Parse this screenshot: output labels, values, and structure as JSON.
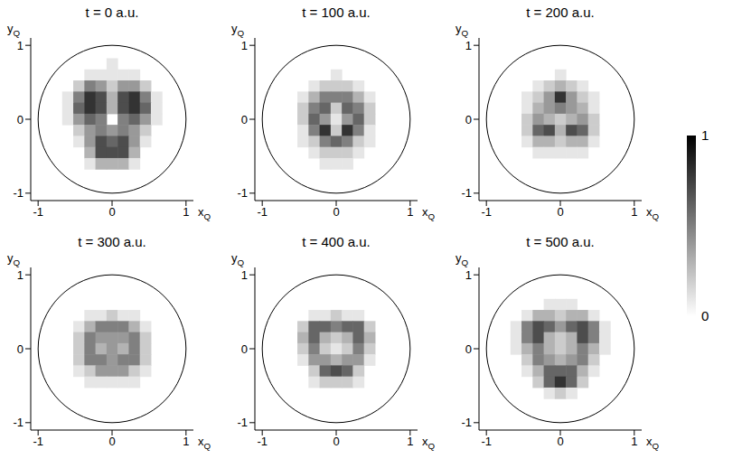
{
  "chart_data": [
    {
      "type": "heatmap",
      "title": "t = 0 a.u.",
      "x_label": "xQ",
      "y_label": "yQ",
      "xlim": [
        -1.1,
        1.1
      ],
      "ylim": [
        -1.1,
        1.1
      ],
      "xticks": [
        -1,
        0,
        1
      ],
      "yticks": [
        -1,
        0,
        1
      ],
      "boundary": {
        "center": [
          0,
          0
        ],
        "radius": 1
      },
      "x": [
        -0.75,
        -0.6,
        -0.45,
        -0.3,
        -0.15,
        0,
        0.15,
        0.3,
        0.45,
        0.6,
        0.75
      ],
      "y": [
        0.75,
        0.6,
        0.45,
        0.3,
        0.15,
        0,
        -0.15,
        -0.3,
        -0.45,
        -0.6,
        -0.75
      ],
      "z": [
        [
          0,
          0,
          0,
          0,
          0,
          0.1,
          0,
          0,
          0,
          0,
          0
        ],
        [
          0,
          0,
          0,
          0.1,
          0.1,
          0.1,
          0.1,
          0.1,
          0,
          0,
          0
        ],
        [
          0,
          0,
          0.2,
          0.5,
          0.4,
          0.2,
          0.4,
          0.4,
          0.2,
          0,
          0
        ],
        [
          0,
          0.1,
          0.5,
          0.8,
          0.7,
          0.3,
          0.7,
          0.8,
          0.5,
          0.1,
          0
        ],
        [
          0,
          0.1,
          0.6,
          0.8,
          0.7,
          0.3,
          0.7,
          0.8,
          0.6,
          0.1,
          0
        ],
        [
          0,
          0.1,
          0.4,
          0.6,
          0.5,
          0,
          0.5,
          0.6,
          0.4,
          0.1,
          0
        ],
        [
          0,
          0,
          0.2,
          0.4,
          0.5,
          0.4,
          0.5,
          0.4,
          0.2,
          0,
          0
        ],
        [
          0,
          0,
          0.1,
          0.4,
          0.7,
          0.6,
          0.7,
          0.4,
          0.1,
          0,
          0
        ],
        [
          0,
          0,
          0,
          0.3,
          0.7,
          0.7,
          0.7,
          0.3,
          0,
          0,
          0
        ],
        [
          0,
          0,
          0,
          0.1,
          0.3,
          0.3,
          0.3,
          0.1,
          0,
          0,
          0
        ],
        [
          0,
          0,
          0,
          0,
          0,
          0,
          0,
          0,
          0,
          0,
          0
        ]
      ]
    },
    {
      "type": "heatmap",
      "title": "t = 100 a.u.",
      "x_label": "xQ",
      "y_label": "yQ",
      "xlim": [
        -1.1,
        1.1
      ],
      "ylim": [
        -1.1,
        1.1
      ],
      "xticks": [
        -1,
        0,
        1
      ],
      "yticks": [
        -1,
        0,
        1
      ],
      "boundary": {
        "center": [
          0,
          0
        ],
        "radius": 1
      },
      "x": [
        -0.75,
        -0.6,
        -0.45,
        -0.3,
        -0.15,
        0,
        0.15,
        0.3,
        0.45,
        0.6,
        0.75
      ],
      "y": [
        0.75,
        0.6,
        0.45,
        0.3,
        0.15,
        0,
        -0.15,
        -0.3,
        -0.45,
        -0.6,
        -0.75
      ],
      "z": [
        [
          0,
          0,
          0,
          0,
          0,
          0,
          0,
          0,
          0,
          0,
          0
        ],
        [
          0,
          0,
          0,
          0,
          0,
          0.1,
          0,
          0,
          0,
          0,
          0
        ],
        [
          0,
          0,
          0,
          0.1,
          0.2,
          0.2,
          0.2,
          0.1,
          0,
          0,
          0
        ],
        [
          0,
          0,
          0.1,
          0.3,
          0.5,
          0.5,
          0.5,
          0.3,
          0.1,
          0,
          0
        ],
        [
          0,
          0,
          0.2,
          0.5,
          0.6,
          0.2,
          0.6,
          0.5,
          0.2,
          0,
          0
        ],
        [
          0,
          0,
          0.2,
          0.6,
          0.4,
          0.1,
          0.4,
          0.6,
          0.2,
          0,
          0
        ],
        [
          0,
          0,
          0.1,
          0.5,
          0.8,
          0.2,
          0.8,
          0.5,
          0.1,
          0,
          0
        ],
        [
          0,
          0,
          0.1,
          0.2,
          0.5,
          0.6,
          0.5,
          0.2,
          0.1,
          0,
          0
        ],
        [
          0,
          0,
          0,
          0.1,
          0.2,
          0.2,
          0.2,
          0.1,
          0,
          0,
          0
        ],
        [
          0,
          0,
          0,
          0,
          0.1,
          0.1,
          0.1,
          0,
          0,
          0,
          0
        ],
        [
          0,
          0,
          0,
          0,
          0,
          0,
          0,
          0,
          0,
          0,
          0
        ]
      ]
    },
    {
      "type": "heatmap",
      "title": "t = 200 a.u.",
      "x_label": "xQ",
      "y_label": "yQ",
      "xlim": [
        -1.1,
        1.1
      ],
      "ylim": [
        -1.1,
        1.1
      ],
      "xticks": [
        -1,
        0,
        1
      ],
      "yticks": [
        -1,
        0,
        1
      ],
      "boundary": {
        "center": [
          0,
          0
        ],
        "radius": 1
      },
      "x": [
        -0.75,
        -0.6,
        -0.45,
        -0.3,
        -0.15,
        0,
        0.15,
        0.3,
        0.45,
        0.6,
        0.75
      ],
      "y": [
        0.75,
        0.6,
        0.45,
        0.3,
        0.15,
        0,
        -0.15,
        -0.3,
        -0.45,
        -0.6,
        -0.75
      ],
      "z": [
        [
          0,
          0,
          0,
          0,
          0,
          0,
          0,
          0,
          0,
          0,
          0
        ],
        [
          0,
          0,
          0,
          0,
          0,
          0.1,
          0,
          0,
          0,
          0,
          0
        ],
        [
          0,
          0,
          0,
          0.1,
          0.2,
          0.3,
          0.2,
          0.1,
          0,
          0,
          0
        ],
        [
          0,
          0,
          0.1,
          0.2,
          0.4,
          0.8,
          0.4,
          0.2,
          0.1,
          0,
          0
        ],
        [
          0,
          0,
          0.1,
          0.3,
          0.4,
          0.5,
          0.4,
          0.3,
          0.1,
          0,
          0
        ],
        [
          0,
          0,
          0.2,
          0.4,
          0.3,
          0.2,
          0.3,
          0.4,
          0.2,
          0,
          0
        ],
        [
          0,
          0,
          0.2,
          0.6,
          0.7,
          0.3,
          0.7,
          0.6,
          0.2,
          0,
          0
        ],
        [
          0,
          0,
          0.1,
          0.3,
          0.3,
          0.2,
          0.3,
          0.3,
          0.1,
          0,
          0
        ],
        [
          0,
          0,
          0,
          0.1,
          0.1,
          0.1,
          0.1,
          0.1,
          0,
          0,
          0
        ],
        [
          0,
          0,
          0,
          0,
          0,
          0,
          0,
          0,
          0,
          0,
          0
        ],
        [
          0,
          0,
          0,
          0,
          0,
          0,
          0,
          0,
          0,
          0,
          0
        ]
      ]
    },
    {
      "type": "heatmap",
      "title": "t = 300 a.u.",
      "x_label": "xQ",
      "y_label": "yQ",
      "xlim": [
        -1.1,
        1.1
      ],
      "ylim": [
        -1.1,
        1.1
      ],
      "xticks": [
        -1,
        0,
        1
      ],
      "yticks": [
        -1,
        0,
        1
      ],
      "boundary": {
        "center": [
          0,
          0
        ],
        "radius": 1
      },
      "x": [
        -0.75,
        -0.6,
        -0.45,
        -0.3,
        -0.15,
        0,
        0.15,
        0.3,
        0.45,
        0.6,
        0.75
      ],
      "y": [
        0.75,
        0.6,
        0.45,
        0.3,
        0.15,
        0,
        -0.15,
        -0.3,
        -0.45,
        -0.6,
        -0.75
      ],
      "z": [
        [
          0,
          0,
          0,
          0,
          0,
          0,
          0,
          0,
          0,
          0,
          0
        ],
        [
          0,
          0,
          0,
          0,
          0,
          0,
          0,
          0,
          0,
          0,
          0
        ],
        [
          0,
          0,
          0,
          0.1,
          0.1,
          0.2,
          0.1,
          0.1,
          0,
          0,
          0
        ],
        [
          0,
          0,
          0.1,
          0.3,
          0.5,
          0.5,
          0.5,
          0.3,
          0.1,
          0,
          0
        ],
        [
          0,
          0,
          0.2,
          0.5,
          0.4,
          0.4,
          0.4,
          0.5,
          0.2,
          0,
          0
        ],
        [
          0,
          0,
          0.2,
          0.5,
          0.3,
          0.4,
          0.3,
          0.5,
          0.2,
          0,
          0
        ],
        [
          0,
          0,
          0.2,
          0.5,
          0.5,
          0.4,
          0.5,
          0.5,
          0.2,
          0,
          0
        ],
        [
          0,
          0,
          0.1,
          0.2,
          0.4,
          0.4,
          0.4,
          0.2,
          0.1,
          0,
          0
        ],
        [
          0,
          0,
          0,
          0.1,
          0.1,
          0.1,
          0.1,
          0.1,
          0,
          0,
          0
        ],
        [
          0,
          0,
          0,
          0,
          0,
          0,
          0,
          0,
          0,
          0,
          0
        ],
        [
          0,
          0,
          0,
          0,
          0,
          0,
          0,
          0,
          0,
          0,
          0
        ]
      ]
    },
    {
      "type": "heatmap",
      "title": "t = 400 a.u.",
      "x_label": "xQ",
      "y_label": "yQ",
      "xlim": [
        -1.1,
        1.1
      ],
      "ylim": [
        -1.1,
        1.1
      ],
      "xticks": [
        -1,
        0,
        1
      ],
      "yticks": [
        -1,
        0,
        1
      ],
      "boundary": {
        "center": [
          0,
          0
        ],
        "radius": 1
      },
      "x": [
        -0.75,
        -0.6,
        -0.45,
        -0.3,
        -0.15,
        0,
        0.15,
        0.3,
        0.45,
        0.6,
        0.75
      ],
      "y": [
        0.75,
        0.6,
        0.45,
        0.3,
        0.15,
        0,
        -0.15,
        -0.3,
        -0.45,
        -0.6,
        -0.75
      ],
      "z": [
        [
          0,
          0,
          0,
          0,
          0,
          0,
          0,
          0,
          0,
          0,
          0
        ],
        [
          0,
          0,
          0,
          0,
          0,
          0,
          0,
          0,
          0,
          0,
          0
        ],
        [
          0,
          0,
          0,
          0.1,
          0.1,
          0.2,
          0.1,
          0.1,
          0,
          0,
          0
        ],
        [
          0,
          0,
          0.2,
          0.6,
          0.6,
          0.5,
          0.6,
          0.6,
          0.2,
          0,
          0
        ],
        [
          0,
          0,
          0.3,
          0.6,
          0.3,
          0.2,
          0.3,
          0.6,
          0.3,
          0,
          0
        ],
        [
          0,
          0,
          0.2,
          0.5,
          0.2,
          0.1,
          0.2,
          0.5,
          0.2,
          0,
          0
        ],
        [
          0,
          0,
          0.1,
          0.4,
          0.4,
          0.3,
          0.4,
          0.4,
          0.1,
          0,
          0
        ],
        [
          0,
          0,
          0,
          0.2,
          0.6,
          0.7,
          0.6,
          0.2,
          0,
          0,
          0
        ],
        [
          0,
          0,
          0,
          0.1,
          0.2,
          0.2,
          0.2,
          0.1,
          0,
          0,
          0
        ],
        [
          0,
          0,
          0,
          0,
          0,
          0,
          0,
          0,
          0,
          0,
          0
        ],
        [
          0,
          0,
          0,
          0,
          0,
          0,
          0,
          0,
          0,
          0,
          0
        ]
      ]
    },
    {
      "type": "heatmap",
      "title": "t = 500 a.u.",
      "x_label": "xQ",
      "y_label": "yQ",
      "xlim": [
        -1.1,
        1.1
      ],
      "ylim": [
        -1.1,
        1.1
      ],
      "xticks": [
        -1,
        0,
        1
      ],
      "yticks": [
        -1,
        0,
        1
      ],
      "boundary": {
        "center": [
          0,
          0
        ],
        "radius": 1
      },
      "x": [
        -0.75,
        -0.6,
        -0.45,
        -0.3,
        -0.15,
        0,
        0.15,
        0.3,
        0.45,
        0.6,
        0.75
      ],
      "y": [
        0.75,
        0.6,
        0.45,
        0.3,
        0.15,
        0,
        -0.15,
        -0.3,
        -0.45,
        -0.6,
        -0.75
      ],
      "z": [
        [
          0,
          0,
          0,
          0,
          0,
          0,
          0,
          0,
          0,
          0,
          0
        ],
        [
          0,
          0,
          0,
          0,
          0.1,
          0.1,
          0.1,
          0,
          0,
          0,
          0
        ],
        [
          0,
          0,
          0.1,
          0.3,
          0.3,
          0.2,
          0.3,
          0.3,
          0.1,
          0,
          0
        ],
        [
          0,
          0.1,
          0.5,
          0.7,
          0.6,
          0.4,
          0.6,
          0.7,
          0.5,
          0.1,
          0
        ],
        [
          0,
          0.1,
          0.5,
          0.7,
          0.3,
          0.2,
          0.3,
          0.7,
          0.5,
          0.1,
          0
        ],
        [
          0,
          0.1,
          0.3,
          0.5,
          0.3,
          0.2,
          0.3,
          0.5,
          0.3,
          0.1,
          0
        ],
        [
          0,
          0,
          0.2,
          0.5,
          0.4,
          0.3,
          0.4,
          0.5,
          0.2,
          0,
          0
        ],
        [
          0,
          0,
          0.1,
          0.3,
          0.6,
          0.6,
          0.6,
          0.3,
          0.1,
          0,
          0
        ],
        [
          0,
          0,
          0,
          0.2,
          0.6,
          0.8,
          0.6,
          0.2,
          0,
          0,
          0
        ],
        [
          0,
          0,
          0,
          0,
          0.1,
          0.2,
          0.1,
          0,
          0,
          0,
          0
        ],
        [
          0,
          0,
          0,
          0,
          0,
          0,
          0,
          0,
          0,
          0,
          0
        ]
      ]
    }
  ],
  "colorbar": {
    "range": [
      0,
      1
    ],
    "ticks": [
      0,
      1
    ]
  }
}
